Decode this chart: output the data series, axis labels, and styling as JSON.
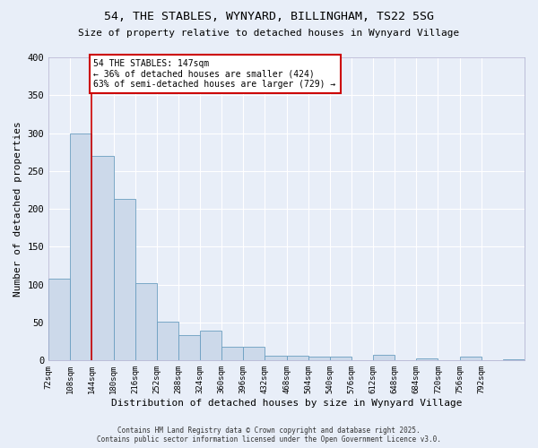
{
  "title1": "54, THE STABLES, WYNYARD, BILLINGHAM, TS22 5SG",
  "title2": "Size of property relative to detached houses in Wynyard Village",
  "xlabel": "Distribution of detached houses by size in Wynyard Village",
  "ylabel": "Number of detached properties",
  "footer": "Contains HM Land Registry data © Crown copyright and database right 2025.\nContains public sector information licensed under the Open Government Licence v3.0.",
  "bar_values": [
    108,
    300,
    270,
    213,
    102,
    51,
    33,
    40,
    18,
    18,
    6,
    6,
    5,
    5,
    0,
    8,
    0,
    3,
    0,
    5,
    0,
    2
  ],
  "bin_starts": [
    72,
    108,
    144,
    180,
    216,
    252,
    288,
    324,
    360,
    396,
    432,
    468,
    504,
    540,
    576,
    612,
    648,
    684,
    720,
    756,
    792,
    828
  ],
  "bin_width": 36,
  "tick_labels": [
    "72sqm",
    "108sqm",
    "144sqm",
    "180sqm",
    "216sqm",
    "252sqm",
    "288sqm",
    "324sqm",
    "360sqm",
    "396sqm",
    "432sqm",
    "468sqm",
    "504sqm",
    "540sqm",
    "576sqm",
    "612sqm",
    "648sqm",
    "684sqm",
    "720sqm",
    "756sqm",
    "792sqm"
  ],
  "property_line_x": 144,
  "bar_color": "#ccd9ea",
  "bar_edge_color": "#6a9ec0",
  "line_color": "#cc0000",
  "annotation_text": "54 THE STABLES: 147sqm\n← 36% of detached houses are smaller (424)\n63% of semi-detached houses are larger (729) →",
  "annotation_box_color": "#ffffff",
  "annotation_edge_color": "#cc0000",
  "bg_color": "#e8eef8",
  "plot_bg_color": "#e8eef8",
  "grid_color": "#ffffff",
  "ylim": [
    0,
    400
  ],
  "yticks": [
    0,
    50,
    100,
    150,
    200,
    250,
    300,
    350,
    400
  ]
}
